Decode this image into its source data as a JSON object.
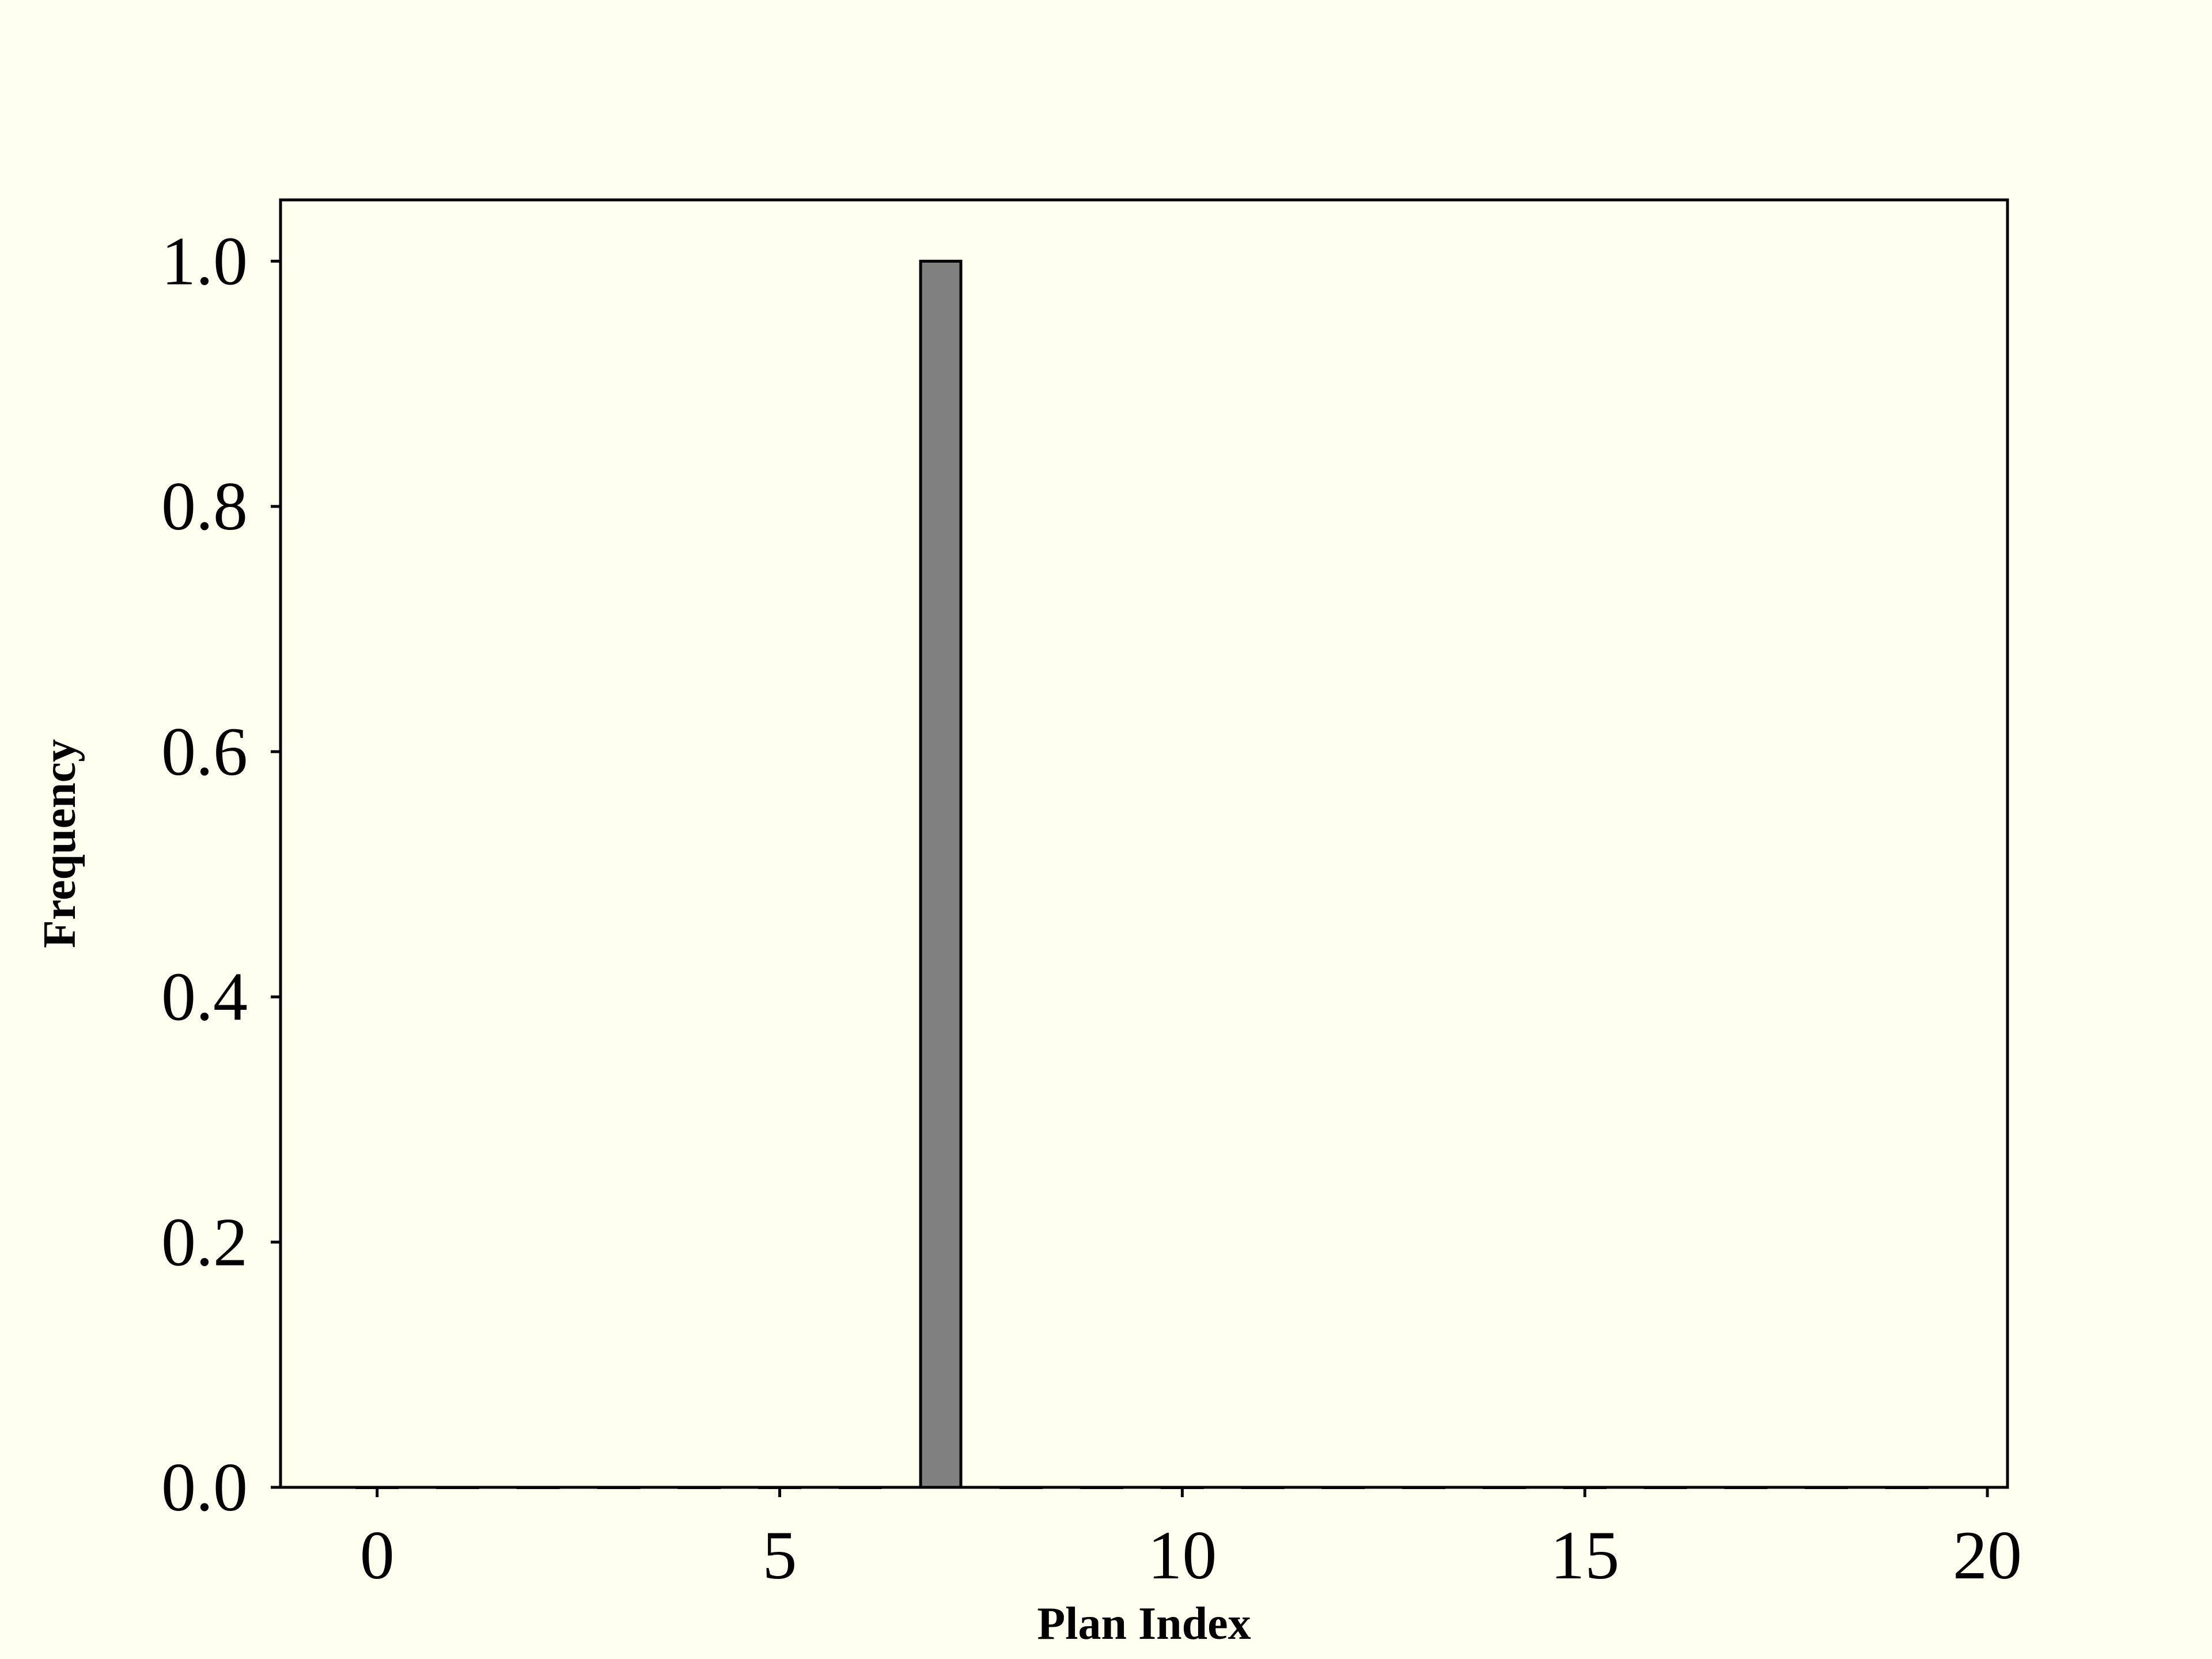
{
  "chart_data": {
    "type": "bar",
    "title": "",
    "xlabel": "Plan Index",
    "ylabel": "Frequency",
    "x": [
      0,
      1,
      2,
      3,
      4,
      5,
      6,
      7,
      8,
      9,
      10,
      11,
      12,
      13,
      14,
      15,
      16,
      17,
      18,
      19
    ],
    "values": [
      0,
      0,
      0,
      0,
      0,
      0,
      0,
      1.0,
      0,
      0,
      0,
      0,
      0,
      0,
      0,
      0,
      0,
      0,
      0,
      0
    ],
    "xlim": [
      -1.2,
      20.25
    ],
    "ylim": [
      0,
      1.05
    ],
    "xticks": [
      0,
      5,
      10,
      15,
      20
    ],
    "xtick_labels": [
      "0",
      "5",
      "10",
      "15",
      "20"
    ],
    "yticks": [
      0.0,
      0.2,
      0.4,
      0.6,
      0.8,
      1.0
    ],
    "ytick_labels": [
      "0.0",
      "0.2",
      "0.4",
      "0.6",
      "0.8",
      "1.0"
    ],
    "grid": false,
    "bar_color": "#808080",
    "edge_color": "#000000",
    "background": "#fffff0"
  }
}
